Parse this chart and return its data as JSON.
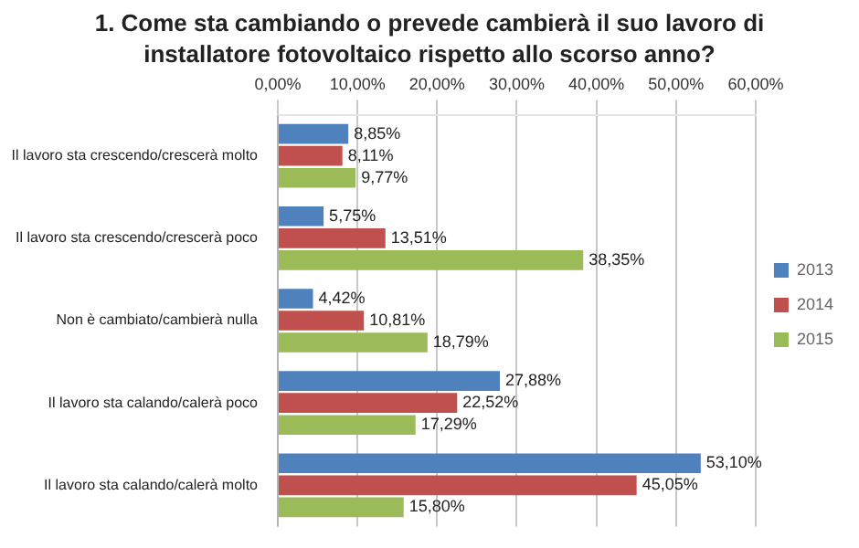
{
  "chart_data": {
    "type": "bar",
    "orientation": "horizontal",
    "title": "1. Come sta cambiando o prevede cambierà il suo lavoro di installatore fotovoltaico rispetto allo scorso anno?",
    "categories": [
      "Il lavoro sta crescendo/crescerà molto",
      "Il lavoro sta crescendo/crescerà poco",
      "Non è cambiato/cambierà nulla",
      "Il lavoro sta calando/calerà poco",
      "Il lavoro sta calando/calerà molto"
    ],
    "series": [
      {
        "name": "2013",
        "color": "#4f81bd",
        "values": [
          8.85,
          5.75,
          4.42,
          27.88,
          53.1
        ],
        "value_labels": [
          "8,85%",
          "5,75%",
          "4,42%",
          "27,88%",
          "53,10%"
        ]
      },
      {
        "name": "2014",
        "color": "#c0504d",
        "values": [
          8.11,
          13.51,
          10.81,
          22.52,
          45.05
        ],
        "value_labels": [
          "8,11%",
          "13,51%",
          "10,81%",
          "22,52%",
          "45,05%"
        ]
      },
      {
        "name": "2015",
        "color": "#9bbb59",
        "values": [
          9.77,
          38.35,
          18.79,
          17.29,
          15.8
        ],
        "value_labels": [
          "9,77%",
          "38,35%",
          "18,79%",
          "17,29%",
          "15,80%"
        ]
      }
    ],
    "xlim": [
      0,
      60
    ],
    "xticks": [
      {
        "value": 0,
        "label": "0,00%"
      },
      {
        "value": 10,
        "label": "10,00%"
      },
      {
        "value": 20,
        "label": "20,00%"
      },
      {
        "value": 30,
        "label": "30,00%"
      },
      {
        "value": 40,
        "label": "40,00%"
      },
      {
        "value": 50,
        "label": "50,00%"
      },
      {
        "value": 60,
        "label": "60,00%"
      }
    ],
    "grid": "x",
    "legend": "right"
  }
}
